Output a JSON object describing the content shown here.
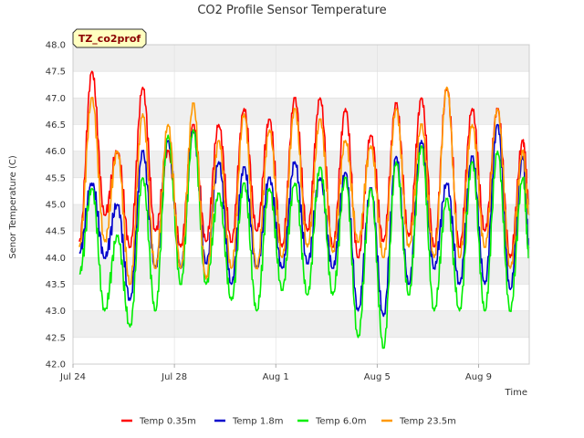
{
  "chart_data": {
    "type": "line",
    "title": "CO2 Profile Sensor Temperature",
    "badge": "TZ_co2prof",
    "xlabel": "Time",
    "ylabel": "Senor Temperature (C)",
    "xlim": [
      "2023-07-24",
      "2023-08-11"
    ],
    "ylim": [
      42.0,
      48.0
    ],
    "x_ticks": [
      {
        "date": "2023-07-24",
        "label": "Jul 24"
      },
      {
        "date": "2023-07-28",
        "label": "Jul 28"
      },
      {
        "date": "2023-08-01",
        "label": "Aug 1"
      },
      {
        "date": "2023-08-05",
        "label": "Aug 5"
      },
      {
        "date": "2023-08-09",
        "label": "Aug 9"
      }
    ],
    "y_ticks": [
      "42.0",
      "42.5",
      "43.0",
      "43.5",
      "44.0",
      "44.5",
      "45.0",
      "45.5",
      "46.0",
      "46.5",
      "47.0",
      "47.5",
      "48.0"
    ],
    "grid": true,
    "legend_position": "bottom",
    "x": [
      "2023-07-24",
      "2023-07-24",
      "2023-07-25",
      "2023-07-25",
      "2023-07-26",
      "2023-07-26",
      "2023-07-27",
      "2023-07-27",
      "2023-07-28",
      "2023-07-28",
      "2023-07-29",
      "2023-07-29",
      "2023-07-30",
      "2023-07-30",
      "2023-07-31",
      "2023-07-31",
      "2023-08-01",
      "2023-08-01",
      "2023-08-02",
      "2023-08-02",
      "2023-08-03",
      "2023-08-03",
      "2023-08-04",
      "2023-08-04",
      "2023-08-05",
      "2023-08-05",
      "2023-08-06",
      "2023-08-06",
      "2023-08-07",
      "2023-08-07",
      "2023-08-08",
      "2023-08-08",
      "2023-08-09",
      "2023-08-09",
      "2023-08-10",
      "2023-08-10",
      "2023-08-11"
    ],
    "x_hours": [
      6,
      18,
      6,
      18,
      6,
      18,
      6,
      18,
      6,
      18,
      6,
      18,
      6,
      18,
      6,
      18,
      6,
      18,
      6,
      18,
      6,
      18,
      6,
      18,
      6,
      18,
      6,
      18,
      6,
      18,
      6,
      18,
      6,
      18,
      6,
      18,
      0
    ],
    "series": [
      {
        "name": "Temp 0.35m",
        "color": "#ff0000",
        "values": [
          44.3,
          47.5,
          44.8,
          46.0,
          44.2,
          47.2,
          44.5,
          46.0,
          44.2,
          46.5,
          44.3,
          46.5,
          44.3,
          46.8,
          44.5,
          46.6,
          44.2,
          47.0,
          44.5,
          47.0,
          44.2,
          46.8,
          44.0,
          46.3,
          44.3,
          46.9,
          44.4,
          47.0,
          44.2,
          47.2,
          44.2,
          46.8,
          44.5,
          46.8,
          44.0,
          46.2,
          45.0
        ]
      },
      {
        "name": "Temp 1.8m",
        "color": "#0000cc",
        "values": [
          44.1,
          45.4,
          44.0,
          45.0,
          43.2,
          46.0,
          43.8,
          46.2,
          43.8,
          46.4,
          43.9,
          45.8,
          43.5,
          45.7,
          43.8,
          45.5,
          43.8,
          45.8,
          43.9,
          45.5,
          43.8,
          45.6,
          43.0,
          45.3,
          42.9,
          45.9,
          43.5,
          46.2,
          43.8,
          45.4,
          43.5,
          45.9,
          43.5,
          46.5,
          43.4,
          45.9,
          44.2
        ]
      },
      {
        "name": "Temp 6.0m",
        "color": "#00ee00",
        "values": [
          43.7,
          45.3,
          43.0,
          44.4,
          42.7,
          45.5,
          43.0,
          46.3,
          43.5,
          46.4,
          43.5,
          45.2,
          43.2,
          45.4,
          43.0,
          45.3,
          43.4,
          45.4,
          43.3,
          45.7,
          43.3,
          45.5,
          42.5,
          45.3,
          42.3,
          45.8,
          43.3,
          46.1,
          43.0,
          45.1,
          43.0,
          45.8,
          43.0,
          46.0,
          43.0,
          45.5,
          44.0
        ]
      },
      {
        "name": "Temp 23.5m",
        "color": "#ff9900",
        "values": [
          44.2,
          47.0,
          44.3,
          46.0,
          43.5,
          46.7,
          43.8,
          46.5,
          43.8,
          46.9,
          43.6,
          46.2,
          43.8,
          46.7,
          43.8,
          46.4,
          44.0,
          46.8,
          44.2,
          46.6,
          44.1,
          46.2,
          44.3,
          46.1,
          44.0,
          46.8,
          44.2,
          46.5,
          44.0,
          47.2,
          44.0,
          46.5,
          44.2,
          46.8,
          43.8,
          46.0,
          44.8
        ]
      }
    ]
  }
}
